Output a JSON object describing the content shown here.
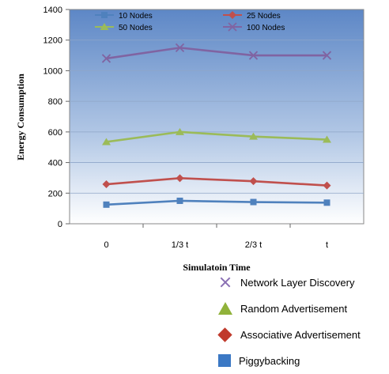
{
  "chart_data": {
    "type": "line",
    "categories": [
      "0",
      "1/3 t",
      "2/3 t",
      "t"
    ],
    "series": [
      {
        "name": "10 Nodes",
        "values": [
          125,
          150,
          142,
          138
        ],
        "color": "#4f81bd",
        "marker": "square"
      },
      {
        "name": "25 Nodes",
        "values": [
          258,
          298,
          278,
          250
        ],
        "color": "#c0504d",
        "marker": "diamond"
      },
      {
        "name": "50 Nodes",
        "values": [
          535,
          600,
          570,
          550
        ],
        "color": "#9bbb59",
        "marker": "triangle"
      },
      {
        "name": "100 Nodes",
        "values": [
          1080,
          1150,
          1100,
          1100
        ],
        "color": "#8064a2",
        "marker": "x"
      }
    ],
    "xlabel": "Simulatoin Time",
    "ylabel": "Energy Consumption",
    "ylim": [
      0,
      1400
    ],
    "yticks": [
      0,
      200,
      400,
      600,
      800,
      1000,
      1200,
      1400
    ],
    "grid": true,
    "legend_position": "top"
  },
  "external_legend": [
    {
      "label": "Network Layer Discovery",
      "icon": "x-icon",
      "color": "#8a6fb3"
    },
    {
      "label": "Random Advertisement",
      "icon": "triangle-icon",
      "color": "#90b23a"
    },
    {
      "label": "Associative Advertisement",
      "icon": "diamond-icon",
      "color": "#c0392b"
    },
    {
      "label": "Piggybacking",
      "icon": "square-icon",
      "color": "#3b78c4"
    }
  ]
}
